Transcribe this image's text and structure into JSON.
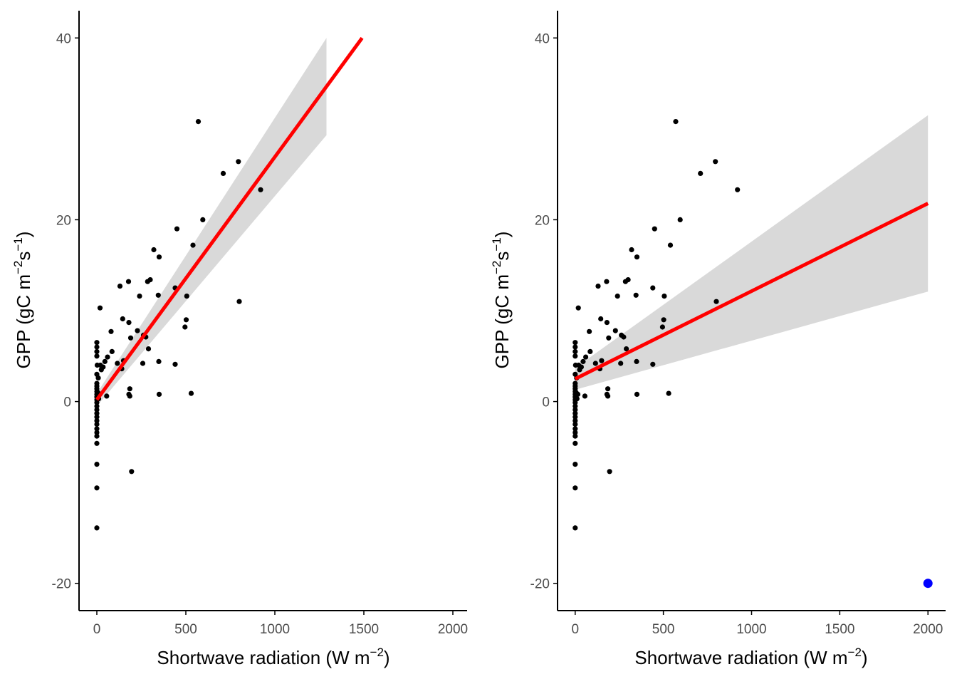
{
  "colors": {
    "points": "#000000",
    "fit_line": "#ff0000",
    "confidence_band": "#d9d9d9",
    "outlier_point": "#0000ff",
    "axis": "#000000",
    "tick_label": "#4d4d4d"
  },
  "chart_data": [
    {
      "type": "scatter",
      "panel": "left",
      "xlabel": {
        "base": "Shortwave radiation (W m",
        "sup": "−2",
        "close": ")"
      },
      "ylabel": {
        "base": "GPP (gC m",
        "sup1": "−2",
        "mid": "s",
        "sup2": "−1",
        "close": ")"
      },
      "xlim": [
        -100,
        2080
      ],
      "ylim": [
        -23,
        43
      ],
      "x_ticks": [
        0,
        500,
        1000,
        1500,
        2000
      ],
      "x_tick_labels": [
        "0",
        "500",
        "1000",
        "1500",
        "2000"
      ],
      "y_ticks": [
        -20,
        0,
        20,
        40
      ],
      "y_tick_labels": [
        "-20",
        "0",
        "20",
        "40"
      ],
      "grid": false,
      "legend": "none",
      "fit_line": {
        "x": [
          0,
          1490
        ],
        "y": [
          0.2,
          40.0
        ]
      },
      "confidence_band": {
        "x": [
          0,
          1290
        ],
        "lower_end": [
          -0.5,
          29.3
        ],
        "upper_end": [
          0.9,
          40.0
        ]
      },
      "points": [
        [
          0,
          6.5
        ],
        [
          0,
          6.0
        ],
        [
          0,
          5.5
        ],
        [
          0,
          5.0
        ],
        [
          0,
          3.0
        ],
        [
          0,
          2.0
        ],
        [
          0,
          1.7
        ],
        [
          0,
          1.4
        ],
        [
          0,
          1.1
        ],
        [
          0,
          0.8
        ],
        [
          0,
          0.5
        ],
        [
          0,
          0.2
        ],
        [
          0,
          -0.1
        ],
        [
          0,
          -0.5
        ],
        [
          0,
          -0.9
        ],
        [
          0,
          -1.3
        ],
        [
          0,
          -1.7
        ],
        [
          0,
          -2.1
        ],
        [
          0,
          -2.5
        ],
        [
          0,
          -3.0
        ],
        [
          0,
          -3.4
        ],
        [
          0,
          -3.8
        ],
        [
          0,
          -4.6
        ],
        [
          0,
          -6.9
        ],
        [
          0,
          -9.5
        ],
        [
          0,
          -13.9
        ],
        [
          2,
          4.0
        ],
        [
          5,
          1.0
        ],
        [
          10,
          0.3
        ],
        [
          15,
          0.8
        ],
        [
          8,
          2.6
        ],
        [
          18,
          10.3
        ],
        [
          20,
          4.0
        ],
        [
          25,
          3.5
        ],
        [
          35,
          3.8
        ],
        [
          45,
          4.4
        ],
        [
          55,
          0.6
        ],
        [
          60,
          4.9
        ],
        [
          80,
          7.7
        ],
        [
          85,
          5.5
        ],
        [
          115,
          4.2
        ],
        [
          130,
          12.7
        ],
        [
          140,
          3.6
        ],
        [
          145,
          9.1
        ],
        [
          150,
          4.5
        ],
        [
          178,
          13.2
        ],
        [
          180,
          8.7
        ],
        [
          180,
          0.8
        ],
        [
          185,
          1.4
        ],
        [
          185,
          0.6
        ],
        [
          190,
          7.0
        ],
        [
          195,
          -7.7
        ],
        [
          228,
          7.8
        ],
        [
          240,
          11.6
        ],
        [
          258,
          4.2
        ],
        [
          262,
          7.3
        ],
        [
          275,
          7.1
        ],
        [
          285,
          13.2
        ],
        [
          290,
          5.8
        ],
        [
          300,
          13.4
        ],
        [
          320,
          16.7
        ],
        [
          345,
          11.7
        ],
        [
          348,
          4.4
        ],
        [
          350,
          15.9
        ],
        [
          350,
          0.8
        ],
        [
          440,
          12.5
        ],
        [
          440,
          4.1
        ],
        [
          450,
          19.0
        ],
        [
          495,
          8.2
        ],
        [
          502,
          9.0
        ],
        [
          505,
          11.6
        ],
        [
          530,
          0.9
        ],
        [
          540,
          17.2
        ],
        [
          570,
          30.8
        ],
        [
          595,
          20.0
        ],
        [
          710,
          25.1
        ],
        [
          795,
          26.4
        ],
        [
          800,
          11.0
        ],
        [
          920,
          23.3
        ]
      ],
      "outliers": []
    },
    {
      "type": "scatter",
      "panel": "right",
      "xlabel": {
        "base": "Shortwave radiation (W m",
        "sup": "−2",
        "close": ")"
      },
      "ylabel": {
        "base": "GPP (gC m",
        "sup1": "−2",
        "mid": "s",
        "sup2": "−1",
        "close": ")"
      },
      "xlim": [
        -100,
        2100
      ],
      "ylim": [
        -23,
        43
      ],
      "x_ticks": [
        0,
        500,
        1000,
        1500,
        2000
      ],
      "x_tick_labels": [
        "0",
        "500",
        "1000",
        "1500",
        "2000"
      ],
      "y_ticks": [
        -20,
        0,
        20,
        40
      ],
      "y_tick_labels": [
        "-20",
        "0",
        "20",
        "40"
      ],
      "grid": false,
      "legend": "none",
      "fit_line": {
        "x": [
          0,
          2000
        ],
        "y": [
          2.5,
          21.8
        ]
      },
      "confidence_band": {
        "x": [
          0,
          2000
        ],
        "lower_end": [
          1.3,
          12.1
        ],
        "upper_end": [
          3.7,
          31.5
        ]
      },
      "points": [
        [
          0,
          6.5
        ],
        [
          0,
          6.0
        ],
        [
          0,
          5.5
        ],
        [
          0,
          5.0
        ],
        [
          0,
          3.0
        ],
        [
          0,
          2.0
        ],
        [
          0,
          1.7
        ],
        [
          0,
          1.4
        ],
        [
          0,
          1.1
        ],
        [
          0,
          0.8
        ],
        [
          0,
          0.5
        ],
        [
          0,
          0.2
        ],
        [
          0,
          -0.1
        ],
        [
          0,
          -0.5
        ],
        [
          0,
          -0.9
        ],
        [
          0,
          -1.3
        ],
        [
          0,
          -1.7
        ],
        [
          0,
          -2.1
        ],
        [
          0,
          -2.5
        ],
        [
          0,
          -3.0
        ],
        [
          0,
          -3.4
        ],
        [
          0,
          -3.8
        ],
        [
          0,
          -4.6
        ],
        [
          0,
          -6.9
        ],
        [
          0,
          -9.5
        ],
        [
          0,
          -13.9
        ],
        [
          2,
          4.0
        ],
        [
          5,
          1.0
        ],
        [
          10,
          0.3
        ],
        [
          15,
          0.8
        ],
        [
          8,
          2.6
        ],
        [
          18,
          10.3
        ],
        [
          20,
          4.0
        ],
        [
          25,
          3.5
        ],
        [
          35,
          3.8
        ],
        [
          45,
          4.4
        ],
        [
          55,
          0.6
        ],
        [
          60,
          4.9
        ],
        [
          80,
          7.7
        ],
        [
          85,
          5.5
        ],
        [
          115,
          4.2
        ],
        [
          130,
          12.7
        ],
        [
          140,
          3.6
        ],
        [
          145,
          9.1
        ],
        [
          150,
          4.5
        ],
        [
          178,
          13.2
        ],
        [
          180,
          8.7
        ],
        [
          180,
          0.8
        ],
        [
          185,
          1.4
        ],
        [
          185,
          0.6
        ],
        [
          190,
          7.0
        ],
        [
          195,
          -7.7
        ],
        [
          228,
          7.8
        ],
        [
          240,
          11.6
        ],
        [
          258,
          4.2
        ],
        [
          262,
          7.3
        ],
        [
          275,
          7.1
        ],
        [
          285,
          13.2
        ],
        [
          290,
          5.8
        ],
        [
          300,
          13.4
        ],
        [
          320,
          16.7
        ],
        [
          345,
          11.7
        ],
        [
          348,
          4.4
        ],
        [
          350,
          15.9
        ],
        [
          350,
          0.8
        ],
        [
          440,
          12.5
        ],
        [
          440,
          4.1
        ],
        [
          450,
          19.0
        ],
        [
          495,
          8.2
        ],
        [
          502,
          9.0
        ],
        [
          505,
          11.6
        ],
        [
          530,
          0.9
        ],
        [
          540,
          17.2
        ],
        [
          570,
          30.8
        ],
        [
          595,
          20.0
        ],
        [
          710,
          25.1
        ],
        [
          795,
          26.4
        ],
        [
          800,
          11.0
        ],
        [
          920,
          23.3
        ]
      ],
      "outliers": [
        [
          2000,
          -20
        ]
      ]
    }
  ]
}
